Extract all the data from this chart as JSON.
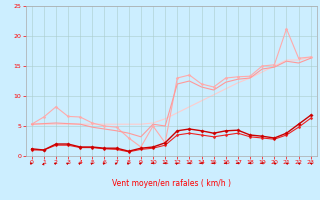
{
  "xlabel": "Vent moyen/en rafales ( km/h )",
  "bg_color": "#cceeff",
  "grid_color": "#aacccc",
  "xlim": [
    -0.5,
    23.5
  ],
  "ylim": [
    0,
    25
  ],
  "yticks": [
    0,
    5,
    10,
    15,
    20,
    25
  ],
  "xticks": [
    0,
    1,
    2,
    3,
    4,
    5,
    6,
    7,
    8,
    9,
    10,
    11,
    12,
    13,
    14,
    15,
    16,
    17,
    18,
    19,
    20,
    21,
    22,
    23
  ],
  "lines": [
    {
      "x": [
        0,
        1,
        2,
        3,
        4,
        5,
        6,
        7,
        8,
        9,
        10,
        11,
        12,
        13,
        14,
        15,
        16,
        17,
        18,
        19,
        20,
        21,
        22,
        23
      ],
      "y": [
        5.3,
        6.5,
        8.2,
        6.6,
        6.5,
        5.5,
        5.0,
        4.8,
        3.0,
        1.5,
        5.0,
        2.2,
        13.0,
        13.5,
        12.0,
        11.5,
        13.0,
        13.2,
        13.3,
        15.0,
        15.2,
        21.2,
        16.3,
        16.5
      ],
      "color": "#ffaaaa",
      "lw": 0.8,
      "marker": "D",
      "ms": 1.5,
      "zorder": 2
    },
    {
      "x": [
        0,
        1,
        2,
        3,
        4,
        5,
        6,
        7,
        8,
        9,
        10,
        11,
        12,
        13,
        14,
        15,
        16,
        17,
        18,
        19,
        20,
        21,
        22,
        23
      ],
      "y": [
        5.3,
        5.4,
        5.5,
        5.4,
        5.3,
        4.8,
        4.5,
        4.2,
        3.8,
        3.2,
        5.3,
        5.0,
        12.0,
        12.5,
        11.5,
        11.0,
        12.3,
        12.8,
        13.0,
        14.5,
        14.8,
        15.8,
        15.5,
        16.3
      ],
      "color": "#ff9999",
      "lw": 0.8,
      "marker": null,
      "ms": 0,
      "zorder": 2
    },
    {
      "x": [
        0,
        1,
        2,
        3,
        4,
        5,
        6,
        7,
        8,
        9,
        10,
        11,
        12,
        13,
        14,
        15,
        16,
        17,
        18,
        19,
        20,
        21,
        22,
        23
      ],
      "y": [
        5.3,
        5.3,
        5.3,
        5.3,
        5.3,
        5.3,
        5.3,
        5.3,
        5.3,
        5.3,
        5.5,
        6.2,
        7.2,
        8.2,
        9.2,
        10.2,
        11.2,
        12.2,
        13.0,
        14.0,
        15.0,
        16.0,
        16.0,
        16.5
      ],
      "color": "#ffcccc",
      "lw": 0.8,
      "marker": null,
      "ms": 0,
      "zorder": 1
    },
    {
      "x": [
        0,
        1,
        2,
        3,
        4,
        5,
        6,
        7,
        8,
        9,
        10,
        11,
        12,
        13,
        14,
        15,
        16,
        17,
        18,
        19,
        20,
        21,
        22,
        23
      ],
      "y": [
        1.2,
        1.0,
        2.0,
        2.0,
        1.5,
        1.5,
        1.3,
        1.3,
        0.8,
        1.3,
        1.5,
        2.2,
        4.2,
        4.5,
        4.2,
        3.8,
        4.2,
        4.3,
        3.5,
        3.3,
        3.0,
        3.8,
        5.3,
        6.8
      ],
      "color": "#cc0000",
      "lw": 1.0,
      "marker": "D",
      "ms": 1.8,
      "zorder": 4
    },
    {
      "x": [
        0,
        1,
        2,
        3,
        4,
        5,
        6,
        7,
        8,
        9,
        10,
        11,
        12,
        13,
        14,
        15,
        16,
        17,
        18,
        19,
        20,
        21,
        22,
        23
      ],
      "y": [
        1.0,
        1.0,
        1.8,
        1.8,
        1.4,
        1.4,
        1.2,
        1.1,
        0.7,
        1.1,
        1.3,
        1.8,
        3.5,
        3.8,
        3.5,
        3.2,
        3.5,
        3.8,
        3.2,
        3.0,
        2.8,
        3.5,
        4.8,
        6.3
      ],
      "color": "#ee2222",
      "lw": 0.8,
      "marker": "D",
      "ms": 1.5,
      "zorder": 3
    }
  ],
  "arrow_angles": [
    45,
    80,
    45,
    45,
    45,
    45,
    45,
    45,
    45,
    45,
    180,
    180,
    45,
    180,
    180,
    180,
    180,
    180,
    180,
    180,
    135,
    135,
    135,
    135
  ],
  "xlabel_fontsize": 5.5,
  "tick_fontsize": 4.5
}
